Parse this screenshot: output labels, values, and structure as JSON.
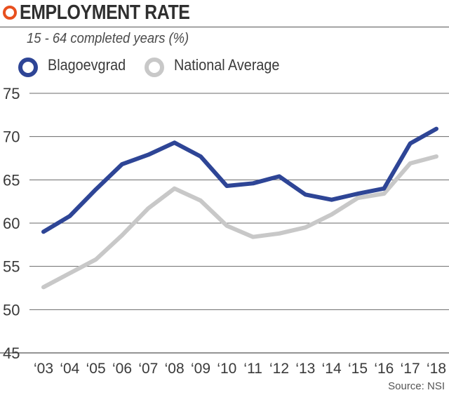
{
  "header": {
    "title": "EMPLOYMENT RATE",
    "subtitle": "15 - 64 completed years (%)"
  },
  "source": "Source: NSI",
  "colors": {
    "accent": "#e8501f",
    "blagoevgrad": "#2e4596",
    "national": "#c8c8c8"
  },
  "chart_data": {
    "type": "line",
    "title": "EMPLOYMENT RATE",
    "subtitle": "15 - 64 completed years (%)",
    "categories": [
      "‘03",
      "‘04",
      "‘05",
      "‘06",
      "‘07",
      "‘08",
      "‘09",
      "‘10",
      "‘11",
      "‘12",
      "‘13",
      "‘14",
      "‘15",
      "‘16",
      "‘17",
      "‘18"
    ],
    "ylim": [
      45,
      75
    ],
    "yticks": [
      45,
      50,
      55,
      60,
      65,
      70,
      75
    ],
    "grid": true,
    "legend_position": "top-left",
    "series": [
      {
        "name": "Blagoevgrad",
        "color": "#2e4596",
        "values": [
          59.0,
          60.8,
          63.9,
          66.8,
          67.9,
          69.3,
          67.7,
          64.3,
          64.6,
          65.4,
          63.3,
          62.7,
          63.4,
          64.0,
          69.2,
          70.9
        ]
      },
      {
        "name": "National Average",
        "color": "#c8c8c8",
        "values": [
          52.6,
          54.2,
          55.8,
          58.6,
          61.7,
          64.0,
          62.6,
          59.7,
          58.4,
          58.8,
          59.5,
          61.0,
          62.9,
          63.4,
          66.9,
          67.7
        ]
      }
    ]
  }
}
